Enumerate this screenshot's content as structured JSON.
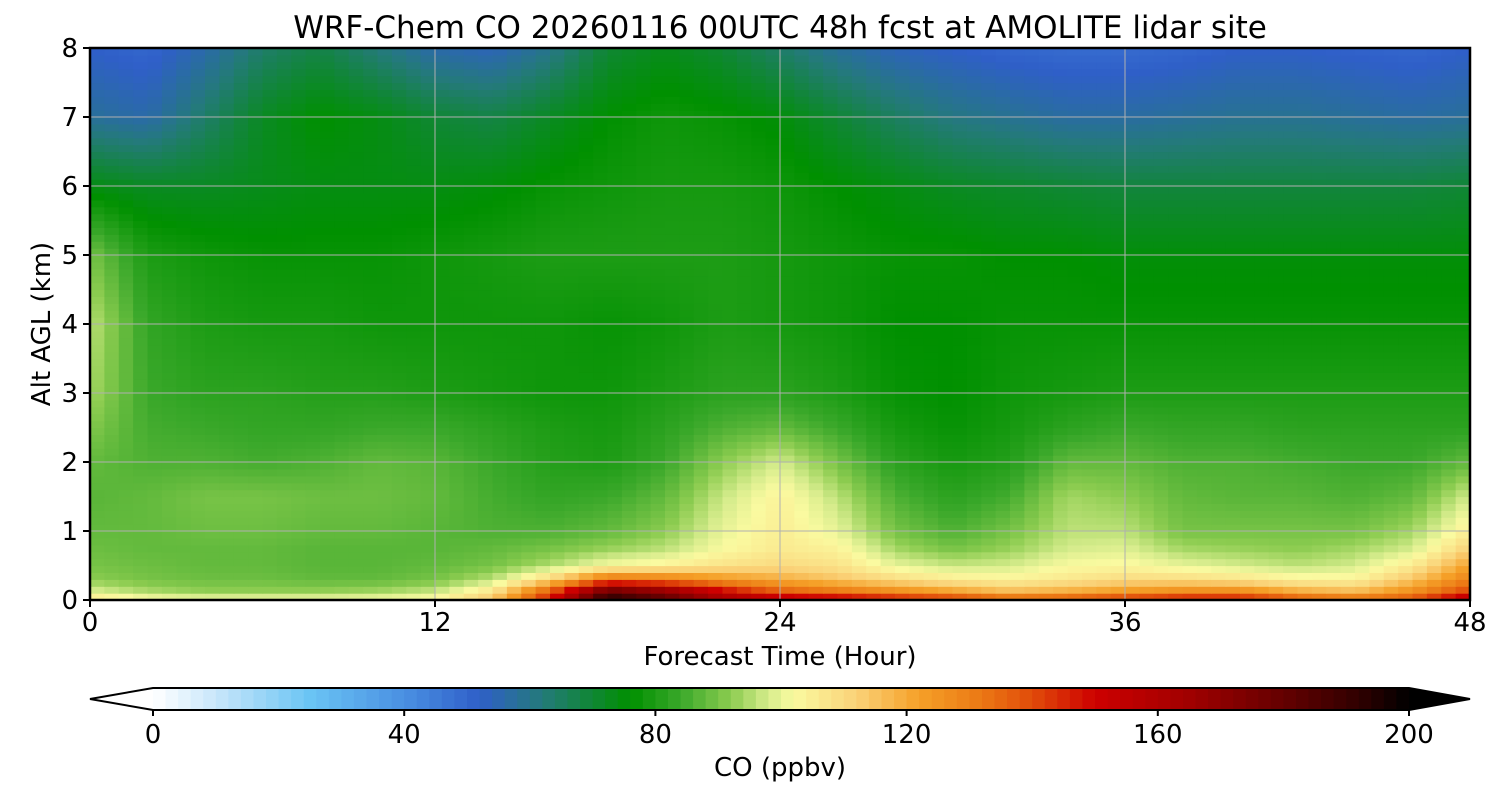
{
  "chart_data": {
    "type": "heatmap",
    "title": "WRF-Chem CO  20260116 00UTC 48h fcst at AMOLITE lidar site",
    "xlabel": "Forecast Time (Hour)",
    "ylabel": "Alt AGL (km)",
    "xlim": [
      0,
      48
    ],
    "ylim": [
      0,
      8
    ],
    "x_ticks": [
      "0",
      "12",
      "24",
      "36",
      "48"
    ],
    "y_ticks": [
      "0",
      "1",
      "2",
      "3",
      "4",
      "5",
      "6",
      "7",
      "8"
    ],
    "grid": true,
    "x": [
      0,
      2,
      4,
      6,
      8,
      10,
      12,
      14,
      16,
      18,
      20,
      22,
      24,
      26,
      28,
      30,
      32,
      34,
      36,
      38,
      40,
      42,
      44,
      46,
      48
    ],
    "y": [
      0,
      0.15,
      0.3,
      0.5,
      0.75,
      1,
      1.5,
      2,
      2.5,
      3,
      4,
      5,
      6,
      7,
      8
    ],
    "z_unit": "ppbv",
    "z": [
      [
        108,
        103,
        101,
        101,
        101,
        102,
        104,
        115,
        150,
        198,
        185,
        165,
        158,
        156,
        150,
        145,
        138,
        140,
        145,
        150,
        150,
        140,
        135,
        140,
        160
      ],
      [
        98,
        94,
        92,
        92,
        92,
        93,
        96,
        106,
        135,
        175,
        165,
        148,
        135,
        130,
        125,
        120,
        115,
        118,
        122,
        125,
        125,
        118,
        115,
        125,
        140
      ],
      [
        92,
        90,
        89,
        89,
        88,
        88,
        90,
        96,
        112,
        135,
        132,
        125,
        120,
        115,
        110,
        106,
        104,
        107,
        110,
        110,
        108,
        104,
        104,
        115,
        130
      ],
      [
        90,
        89,
        88,
        88,
        87,
        87,
        88,
        90,
        95,
        102,
        104,
        108,
        110,
        108,
        100,
        97,
        98,
        102,
        103,
        100,
        98,
        96,
        98,
        106,
        122
      ],
      [
        89,
        88,
        88,
        88,
        87,
        87,
        87,
        88,
        90,
        93,
        96,
        102,
        106,
        104,
        94,
        90,
        93,
        98,
        99,
        94,
        93,
        92,
        94,
        98,
        112
      ],
      [
        88,
        88,
        89,
        89,
        88,
        88,
        87,
        86,
        86,
        88,
        92,
        100,
        105,
        100,
        90,
        86,
        90,
        96,
        96,
        90,
        90,
        90,
        90,
        94,
        105
      ],
      [
        87,
        88,
        90,
        90,
        89,
        89,
        88,
        85,
        83,
        84,
        88,
        97,
        104,
        96,
        86,
        82,
        85,
        94,
        92,
        88,
        87,
        87,
        86,
        88,
        98
      ],
      [
        88,
        86,
        86,
        85,
        86,
        88,
        87,
        84,
        81,
        80,
        84,
        92,
        98,
        90,
        82,
        79,
        81,
        88,
        88,
        86,
        86,
        85,
        84,
        84,
        88
      ],
      [
        91,
        85,
        84,
        83,
        83,
        84,
        84,
        82,
        80,
        79,
        82,
        86,
        88,
        84,
        79,
        77,
        79,
        82,
        84,
        83,
        83,
        82,
        82,
        82,
        82
      ],
      [
        94,
        84,
        82,
        82,
        81,
        81,
        80,
        79,
        78,
        78,
        80,
        82,
        82,
        80,
        77,
        76,
        78,
        79,
        80,
        80,
        80,
        80,
        80,
        80,
        80
      ],
      [
        96,
        83,
        80,
        79,
        79,
        78,
        78,
        78,
        78,
        77,
        78,
        80,
        79,
        78,
        76,
        76,
        77,
        77,
        77,
        77,
        77,
        77,
        77,
        77,
        77
      ],
      [
        90,
        80,
        78,
        77,
        77,
        77,
        78,
        79,
        80,
        80,
        80,
        80,
        79,
        78,
        77,
        77,
        76,
        76,
        75,
        75,
        75,
        75,
        75,
        75,
        75
      ],
      [
        74,
        72,
        72,
        73,
        74,
        74,
        74,
        75,
        77,
        78,
        79,
        79,
        78,
        76,
        74,
        72,
        71,
        70,
        69,
        69,
        69,
        69,
        69,
        69,
        70
      ],
      [
        58,
        56,
        64,
        72,
        76,
        74,
        70,
        68,
        72,
        76,
        78,
        77,
        75,
        70,
        65,
        61,
        59,
        57,
        57,
        58,
        59,
        59,
        58,
        57,
        58
      ],
      [
        52,
        50,
        56,
        64,
        68,
        62,
        56,
        54,
        60,
        70,
        73,
        70,
        64,
        58,
        54,
        52,
        50,
        49,
        49,
        50,
        52,
        52,
        51,
        50,
        52
      ]
    ]
  },
  "colorbar": {
    "label": "CO  (ppbv)",
    "min": 0,
    "max": 200,
    "ticks": [
      "0",
      "40",
      "80",
      "120",
      "160",
      "200"
    ],
    "extend": "both",
    "colors": [
      {
        "v": 0,
        "c": "#ffffff"
      },
      {
        "v": 10,
        "c": "#c8e6fa"
      },
      {
        "v": 25,
        "c": "#6ac4f4"
      },
      {
        "v": 40,
        "c": "#4a90e2"
      },
      {
        "v": 52,
        "c": "#2f5fc8"
      },
      {
        "v": 62,
        "c": "#247a7a"
      },
      {
        "v": 76,
        "c": "#009000"
      },
      {
        "v": 84,
        "c": "#3aa82a"
      },
      {
        "v": 92,
        "c": "#8ccc50"
      },
      {
        "v": 98,
        "c": "#d6ec8c"
      },
      {
        "v": 102,
        "c": "#fafaa0"
      },
      {
        "v": 112,
        "c": "#fad278"
      },
      {
        "v": 122,
        "c": "#f5a028"
      },
      {
        "v": 132,
        "c": "#eb7814"
      },
      {
        "v": 140,
        "c": "#e14b0a"
      },
      {
        "v": 150,
        "c": "#cd0000"
      },
      {
        "v": 165,
        "c": "#a00000"
      },
      {
        "v": 180,
        "c": "#640000"
      },
      {
        "v": 192,
        "c": "#300000"
      },
      {
        "v": 200,
        "c": "#000000"
      }
    ]
  }
}
